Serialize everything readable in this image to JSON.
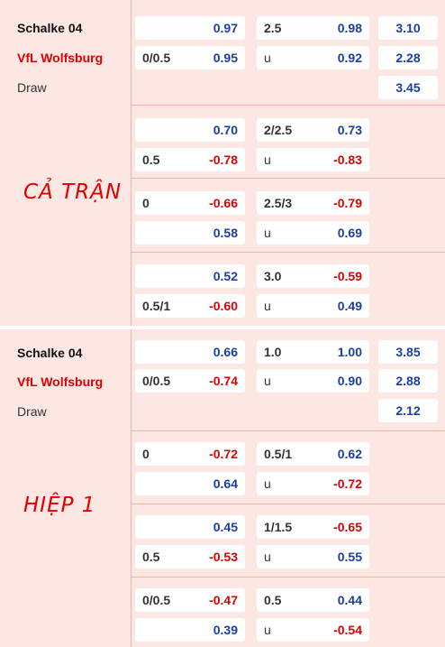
{
  "full_time": {
    "label": "CẢ TRẬN",
    "home": "Schalke 04",
    "away": "VfL Wolfsburg",
    "draw": "Draw",
    "main": {
      "ah_home_line": "",
      "ah_home_odd": "0.97",
      "ah_away_line": "0/0.5",
      "ah_away_odd": "0.95",
      "ou_line": "2.5",
      "ou_over_odd": "0.98",
      "ou_u": "u",
      "ou_under_odd": "0.92",
      "x12_home": "3.10",
      "x12_away": "2.28",
      "x12_draw": "3.45"
    },
    "alts": [
      {
        "ah_top_line": "",
        "ah_top_odd": "0.70",
        "ah_bot_line": "0.5",
        "ah_bot_odd": "-0.78",
        "ou_line": "2/2.5",
        "ou_top_odd": "0.73",
        "ou_u": "u",
        "ou_bot_odd": "-0.83"
      },
      {
        "ah_top_line": "0",
        "ah_top_odd": "-0.66",
        "ah_bot_line": "",
        "ah_bot_odd": "0.58",
        "ou_line": "2.5/3",
        "ou_top_odd": "-0.79",
        "ou_u": "u",
        "ou_bot_odd": "0.69"
      },
      {
        "ah_top_line": "",
        "ah_top_odd": "0.52",
        "ah_bot_line": "0.5/1",
        "ah_bot_odd": "-0.60",
        "ou_line": "3.0",
        "ou_top_odd": "-0.59",
        "ou_u": "u",
        "ou_bot_odd": "0.49"
      }
    ]
  },
  "first_half": {
    "label": "HIỆP 1",
    "home": "Schalke 04",
    "away": "VfL Wolfsburg",
    "draw": "Draw",
    "main": {
      "ah_home_line": "",
      "ah_home_odd": "0.66",
      "ah_away_line": "0/0.5",
      "ah_away_odd": "-0.74",
      "ou_line": "1.0",
      "ou_over_odd": "1.00",
      "ou_u": "u",
      "ou_under_odd": "0.90",
      "x12_home": "3.85",
      "x12_away": "2.88",
      "x12_draw": "2.12"
    },
    "alts": [
      {
        "ah_top_line": "0",
        "ah_top_odd": "-0.72",
        "ah_bot_line": "",
        "ah_bot_odd": "0.64",
        "ou_line": "0.5/1",
        "ou_top_odd": "0.62",
        "ou_u": "u",
        "ou_bot_odd": "-0.72"
      },
      {
        "ah_top_line": "",
        "ah_top_odd": "0.45",
        "ah_bot_line": "0.5",
        "ah_bot_odd": "-0.53",
        "ou_line": "1/1.5",
        "ou_top_odd": "-0.65",
        "ou_u": "u",
        "ou_bot_odd": "0.55"
      },
      {
        "ah_top_line": "0/0.5",
        "ah_top_odd": "-0.47",
        "ah_bot_line": "",
        "ah_bot_odd": "0.39",
        "ou_line": "0.5",
        "ou_top_odd": "0.44",
        "ou_u": "u",
        "ou_bot_odd": "-0.54"
      }
    ]
  }
}
